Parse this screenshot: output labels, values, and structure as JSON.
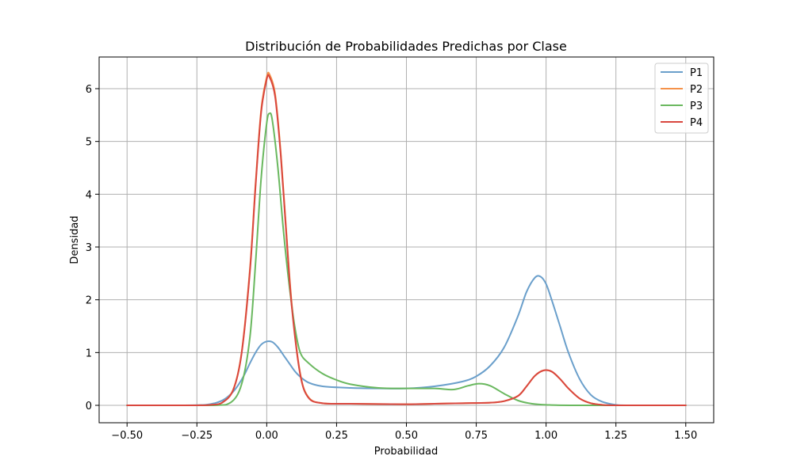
{
  "chart_data": {
    "type": "line",
    "title": "Distribución de Probabilidades Predichas por Clase",
    "xlabel": "Probabilidad",
    "ylabel": "Densidad",
    "xlim": [
      -0.6,
      1.6
    ],
    "ylim": [
      -0.33,
      6.6
    ],
    "xticks": [
      -0.5,
      -0.25,
      0.0,
      0.25,
      0.5,
      0.75,
      1.0,
      1.25,
      1.5
    ],
    "xtick_labels": [
      "−0.50",
      "−0.25",
      "0.00",
      "0.25",
      "0.50",
      "0.75",
      "1.00",
      "1.25",
      "1.50"
    ],
    "yticks": [
      0,
      1,
      2,
      3,
      4,
      5,
      6
    ],
    "ytick_labels": [
      "0",
      "1",
      "2",
      "3",
      "4",
      "5",
      "6"
    ],
    "grid": true,
    "legend_position": "top-right",
    "series": [
      {
        "name": "P1",
        "color": "#6a9fcb",
        "x": [
          -0.5,
          -0.3,
          -0.22,
          -0.18,
          -0.15,
          -0.12,
          -0.1,
          -0.08,
          -0.06,
          -0.04,
          -0.02,
          0.0,
          0.02,
          0.04,
          0.06,
          0.08,
          0.1,
          0.12,
          0.15,
          0.2,
          0.3,
          0.4,
          0.5,
          0.6,
          0.7,
          0.75,
          0.8,
          0.85,
          0.9,
          0.93,
          0.96,
          0.98,
          1.0,
          1.02,
          1.05,
          1.08,
          1.12,
          1.16,
          1.2,
          1.25,
          1.3,
          1.5
        ],
        "y": [
          0.0,
          0.0,
          0.01,
          0.05,
          0.12,
          0.26,
          0.4,
          0.58,
          0.8,
          1.0,
          1.15,
          1.21,
          1.2,
          1.1,
          0.95,
          0.8,
          0.65,
          0.54,
          0.43,
          0.36,
          0.33,
          0.32,
          0.32,
          0.36,
          0.45,
          0.55,
          0.75,
          1.1,
          1.7,
          2.15,
          2.42,
          2.44,
          2.3,
          2.0,
          1.5,
          1.0,
          0.5,
          0.2,
          0.07,
          0.01,
          0.0,
          0.0
        ]
      },
      {
        "name": "P2",
        "color": "#f5924a",
        "x": [
          -0.5,
          -0.25,
          -0.2,
          -0.16,
          -0.12,
          -0.09,
          -0.06,
          -0.04,
          -0.02,
          0.0,
          0.01,
          0.03,
          0.05,
          0.07,
          0.09,
          0.12,
          0.15,
          0.2,
          0.3,
          0.5,
          0.6,
          0.7,
          0.8,
          0.85,
          0.9,
          0.93,
          0.96,
          0.99,
          1.02,
          1.05,
          1.08,
          1.12,
          1.16,
          1.2,
          1.25,
          1.5
        ],
        "y": [
          0.0,
          0.0,
          0.01,
          0.05,
          0.3,
          1.0,
          2.6,
          4.2,
          5.6,
          6.22,
          6.27,
          5.9,
          4.8,
          3.3,
          1.9,
          0.6,
          0.15,
          0.04,
          0.03,
          0.02,
          0.03,
          0.04,
          0.05,
          0.08,
          0.18,
          0.36,
          0.56,
          0.66,
          0.64,
          0.5,
          0.32,
          0.13,
          0.04,
          0.01,
          0.0,
          0.0
        ]
      },
      {
        "name": "P3",
        "color": "#6ab85f",
        "x": [
          -0.5,
          -0.2,
          -0.13,
          -0.09,
          -0.06,
          -0.04,
          -0.02,
          0.0,
          0.01,
          0.02,
          0.04,
          0.06,
          0.08,
          0.1,
          0.12,
          0.15,
          0.2,
          0.25,
          0.3,
          0.4,
          0.5,
          0.6,
          0.67,
          0.72,
          0.76,
          0.8,
          0.85,
          0.9,
          0.95,
          1.0,
          1.1,
          1.5
        ],
        "y": [
          0.0,
          0.0,
          0.05,
          0.4,
          1.3,
          2.7,
          4.3,
          5.35,
          5.53,
          5.4,
          4.5,
          3.3,
          2.3,
          1.5,
          1.0,
          0.8,
          0.6,
          0.48,
          0.4,
          0.33,
          0.32,
          0.32,
          0.3,
          0.37,
          0.41,
          0.37,
          0.22,
          0.09,
          0.03,
          0.01,
          0.0,
          0.0
        ]
      },
      {
        "name": "P4",
        "color": "#d9473e",
        "x": [
          -0.5,
          -0.25,
          -0.2,
          -0.16,
          -0.12,
          -0.09,
          -0.06,
          -0.04,
          -0.02,
          0.0,
          0.01,
          0.03,
          0.05,
          0.07,
          0.09,
          0.12,
          0.15,
          0.2,
          0.3,
          0.5,
          0.6,
          0.7,
          0.8,
          0.85,
          0.9,
          0.93,
          0.96,
          0.99,
          1.02,
          1.05,
          1.08,
          1.12,
          1.16,
          1.2,
          1.25,
          1.5
        ],
        "y": [
          0.0,
          0.0,
          0.01,
          0.05,
          0.29,
          0.98,
          2.55,
          4.15,
          5.55,
          6.18,
          6.22,
          5.85,
          4.75,
          3.25,
          1.85,
          0.58,
          0.14,
          0.04,
          0.03,
          0.02,
          0.03,
          0.04,
          0.05,
          0.08,
          0.18,
          0.36,
          0.56,
          0.66,
          0.64,
          0.5,
          0.32,
          0.13,
          0.04,
          0.01,
          0.0,
          0.0
        ]
      }
    ]
  }
}
